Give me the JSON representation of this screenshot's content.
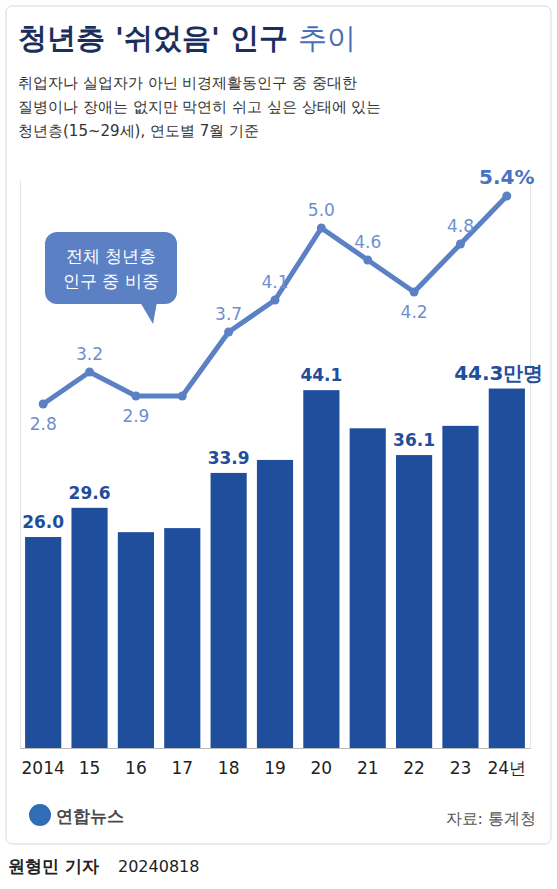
{
  "chart_data": {
    "type": "bar",
    "title": "청년층 '쉬었음' 인구 추이",
    "subtitle": [
      "취업자나 실업자가 아닌 비경제활동인구 중 중대한",
      "질병이나 장애는 없지만 막연히 쉬고 싶은 상태에 있는",
      "청년층(15~29세), 연도별 7월 기준"
    ],
    "categories": [
      "2014",
      "15",
      "16",
      "17",
      "18",
      "19",
      "20",
      "21",
      "22",
      "23",
      "24년"
    ],
    "series": [
      {
        "type": "bar",
        "color": "#1f4e9c",
        "values": [
          26.0,
          29.6,
          26.6,
          27.1,
          33.9,
          35.5,
          44.1,
          39.4,
          36.1,
          39.7,
          44.3
        ],
        "value_labels": [
          "26.0",
          "29.6",
          null,
          null,
          "33.9",
          null,
          "44.1",
          null,
          "36.1",
          null,
          "44.3만명"
        ]
      },
      {
        "name": "전체 청년층 인구 중 비중",
        "type": "line",
        "axis": "y2",
        "color": "#5b80c4",
        "marker": "circle",
        "values": [
          2.8,
          3.2,
          2.9,
          2.9,
          3.7,
          4.1,
          5.0,
          4.6,
          4.2,
          4.8,
          5.4
        ],
        "value_labels": [
          "2.8",
          "3.2",
          "2.9",
          null,
          "3.7",
          "4.1",
          "5.0",
          "4.6",
          "4.2",
          "4.8",
          "5.4%"
        ]
      }
    ],
    "ylim": [
      0,
      70
    ],
    "yticks": [],
    "y2lim": [
      -1.5,
      5.6
    ],
    "y2ticks": [],
    "tick_labels": "x",
    "data_labels": true,
    "grid": false,
    "source": "자료: 통계청",
    "credit": "연합뉴스",
    "byline": "원형민 기자",
    "date": "20240818"
  }
}
